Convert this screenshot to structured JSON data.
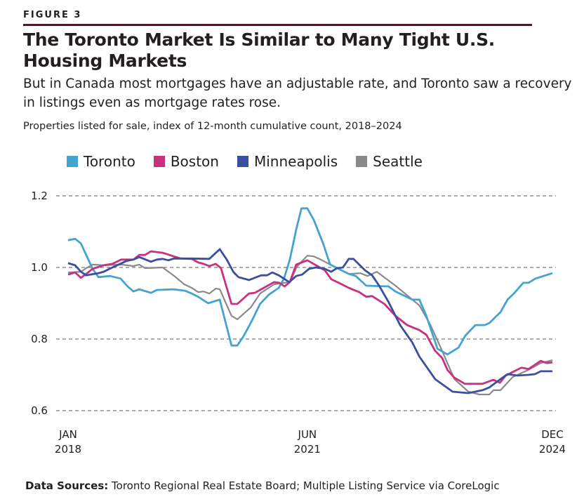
{
  "figure_label": "FIGURE 3",
  "colors": {
    "rule": "#4a1a2c"
  },
  "chart_data": {
    "type": "line",
    "title": "The Toronto Market Is Similar to Many Tight U.S. Housing Markets",
    "subtitle": "But in Canada most mortgages have an adjustable rate, and Toronto saw a recovery in listings even as mortgage rates rose.",
    "ylabel": "Properties listed for sale, index of 12-month cumulative count, 2018–2024",
    "xlabel": "",
    "x_unit": "months since Jan 2018",
    "xlim": [
      0,
      83
    ],
    "ylim": [
      0.6,
      1.2
    ],
    "grid": true,
    "legend_position": "top",
    "y_ticks": [
      {
        "value": 1.2,
        "label": "1.2"
      },
      {
        "value": 1.0,
        "label": "1.0"
      },
      {
        "value": 0.8,
        "label": "0.8"
      },
      {
        "value": 0.6,
        "label": "0.6"
      }
    ],
    "x_ticks": [
      {
        "value": 0,
        "month": "JAN",
        "year": "2018",
        "anchor": "middle"
      },
      {
        "value": 41,
        "month": "JUN",
        "year": "2021",
        "anchor": "middle"
      },
      {
        "value": 83,
        "month": "DEC",
        "year": "2024",
        "anchor": "middle"
      }
    ],
    "series": [
      {
        "name": "Toronto",
        "color": "#45a3d0",
        "points": [
          [
            0,
            1.076
          ],
          [
            1.2,
            1.08
          ],
          [
            2.2,
            1.067
          ],
          [
            3.1,
            1.035
          ],
          [
            4.2,
            0.996
          ],
          [
            5.2,
            0.973
          ],
          [
            7.2,
            0.976
          ],
          [
            9,
            0.969
          ],
          [
            10.2,
            0.947
          ],
          [
            11.2,
            0.933
          ],
          [
            12.2,
            0.939
          ],
          [
            14.2,
            0.929
          ],
          [
            15.2,
            0.937
          ],
          [
            18,
            0.939
          ],
          [
            20,
            0.935
          ],
          [
            21.2,
            0.927
          ],
          [
            22.3,
            0.918
          ],
          [
            24,
            0.9
          ],
          [
            26,
            0.91
          ],
          [
            28,
            0.782
          ],
          [
            29,
            0.782
          ],
          [
            30,
            0.806
          ],
          [
            31.3,
            0.845
          ],
          [
            32.9,
            0.898
          ],
          [
            34.4,
            0.924
          ],
          [
            36.1,
            0.943
          ],
          [
            37,
            0.969
          ],
          [
            38,
            1.022
          ],
          [
            39.1,
            1.106
          ],
          [
            40,
            1.165
          ],
          [
            41,
            1.165
          ],
          [
            42.1,
            1.133
          ],
          [
            43.7,
            1.067
          ],
          [
            44.9,
            1.008
          ],
          [
            48.1,
            0.982
          ],
          [
            49.3,
            0.976
          ],
          [
            51.1,
            0.949
          ],
          [
            54.9,
            0.947
          ],
          [
            56.1,
            0.933
          ],
          [
            59,
            0.91
          ],
          [
            60.2,
            0.91
          ],
          [
            61.4,
            0.865
          ],
          [
            63.3,
            0.773
          ],
          [
            65,
            0.757
          ],
          [
            66.9,
            0.776
          ],
          [
            68.1,
            0.81
          ],
          [
            69.8,
            0.839
          ],
          [
            71.4,
            0.839
          ],
          [
            72.2,
            0.845
          ],
          [
            74.1,
            0.875
          ],
          [
            75.3,
            0.91
          ],
          [
            76.5,
            0.929
          ],
          [
            78,
            0.957
          ],
          [
            78.9,
            0.957
          ],
          [
            80.1,
            0.969
          ],
          [
            83,
            0.984
          ]
        ]
      },
      {
        "name": "Boston",
        "color": "#c8317f",
        "points": [
          [
            0,
            0.98
          ],
          [
            1.2,
            0.986
          ],
          [
            2.2,
            0.971
          ],
          [
            3.1,
            0.982
          ],
          [
            4.2,
            0.996
          ],
          [
            6.1,
            1.006
          ],
          [
            7.6,
            1.01
          ],
          [
            9.1,
            1.022
          ],
          [
            11.2,
            1.022
          ],
          [
            12.2,
            1.035
          ],
          [
            13.2,
            1.035
          ],
          [
            14.2,
            1.045
          ],
          [
            16.2,
            1.041
          ],
          [
            18.1,
            1.031
          ],
          [
            19.3,
            1.025
          ],
          [
            21.2,
            1.024
          ],
          [
            22.3,
            1.014
          ],
          [
            23.2,
            1.01
          ],
          [
            24.2,
            1.004
          ],
          [
            25.3,
            1.01
          ],
          [
            26.2,
            0.998
          ],
          [
            28,
            0.898
          ],
          [
            29,
            0.898
          ],
          [
            31,
            0.927
          ],
          [
            32,
            0.929
          ],
          [
            35.3,
            0.959
          ],
          [
            36.2,
            0.957
          ],
          [
            37.1,
            0.947
          ],
          [
            38,
            0.959
          ],
          [
            39.1,
            1.008
          ],
          [
            41,
            1.02
          ],
          [
            44,
            0.992
          ],
          [
            45.1,
            0.967
          ],
          [
            46.9,
            0.953
          ],
          [
            48.1,
            0.943
          ],
          [
            49.9,
            0.931
          ],
          [
            51.1,
            0.918
          ],
          [
            52.1,
            0.92
          ],
          [
            54.2,
            0.898
          ],
          [
            56.1,
            0.865
          ],
          [
            58.1,
            0.839
          ],
          [
            60.2,
            0.825
          ],
          [
            61.4,
            0.812
          ],
          [
            62.9,
            0.767
          ],
          [
            64.1,
            0.747
          ],
          [
            65,
            0.714
          ],
          [
            66.2,
            0.692
          ],
          [
            68,
            0.675
          ],
          [
            71,
            0.675
          ],
          [
            72.9,
            0.686
          ],
          [
            74,
            0.678
          ],
          [
            75,
            0.698
          ],
          [
            77.7,
            0.72
          ],
          [
            78.9,
            0.716
          ],
          [
            81,
            0.739
          ],
          [
            82,
            0.733
          ],
          [
            83,
            0.735
          ]
        ]
      },
      {
        "name": "Minneapolis",
        "color": "#3a4f9e",
        "points": [
          [
            0,
            1.012
          ],
          [
            1.2,
            1.006
          ],
          [
            2.2,
            0.988
          ],
          [
            3.1,
            0.978
          ],
          [
            5.2,
            0.984
          ],
          [
            6.1,
            0.988
          ],
          [
            7.6,
            1.0
          ],
          [
            10,
            1.018
          ],
          [
            11.2,
            1.022
          ],
          [
            12.2,
            1.029
          ],
          [
            14.2,
            1.016
          ],
          [
            15.2,
            1.022
          ],
          [
            16.2,
            1.024
          ],
          [
            17.2,
            1.02
          ],
          [
            18.1,
            1.025
          ],
          [
            21.2,
            1.025
          ],
          [
            24.2,
            1.024
          ],
          [
            26,
            1.051
          ],
          [
            27.2,
            1.022
          ],
          [
            28.3,
            0.988
          ],
          [
            29.2,
            0.973
          ],
          [
            31,
            0.965
          ],
          [
            33.1,
            0.978
          ],
          [
            34.1,
            0.978
          ],
          [
            35,
            0.986
          ],
          [
            36.1,
            0.978
          ],
          [
            37.9,
            0.959
          ],
          [
            39.1,
            0.976
          ],
          [
            40.1,
            0.98
          ],
          [
            41.3,
            0.996
          ],
          [
            42.5,
            1.0
          ],
          [
            44,
            0.996
          ],
          [
            45.1,
            0.988
          ],
          [
            46.1,
            0.998
          ],
          [
            47.1,
            1.0
          ],
          [
            48.1,
            1.024
          ],
          [
            48.9,
            1.024
          ],
          [
            50.9,
            0.992
          ],
          [
            52.1,
            0.978
          ],
          [
            53.3,
            0.949
          ],
          [
            54.9,
            0.904
          ],
          [
            56.9,
            0.839
          ],
          [
            59,
            0.79
          ],
          [
            60.2,
            0.751
          ],
          [
            62.9,
            0.688
          ],
          [
            65.9,
            0.653
          ],
          [
            68.6,
            0.649
          ],
          [
            71,
            0.657
          ],
          [
            72.2,
            0.665
          ],
          [
            74.1,
            0.688
          ],
          [
            75.3,
            0.702
          ],
          [
            77,
            0.698
          ],
          [
            78.9,
            0.7
          ],
          [
            80,
            0.702
          ],
          [
            81,
            0.71
          ],
          [
            83,
            0.71
          ]
        ]
      },
      {
        "name": "Seattle",
        "color": "#8a8a8a",
        "points": [
          [
            0,
            0.986
          ],
          [
            2.2,
            0.988
          ],
          [
            3.1,
            0.998
          ],
          [
            4.2,
            1.008
          ],
          [
            6.1,
            1.006
          ],
          [
            9.1,
            1.008
          ],
          [
            11.2,
            1.004
          ],
          [
            12.2,
            1.008
          ],
          [
            13.2,
            0.998
          ],
          [
            16.2,
            1.0
          ],
          [
            18.2,
            0.976
          ],
          [
            19.9,
            0.953
          ],
          [
            21.2,
            0.943
          ],
          [
            22.3,
            0.931
          ],
          [
            23.2,
            0.933
          ],
          [
            24.2,
            0.927
          ],
          [
            25.3,
            0.941
          ],
          [
            26,
            0.939
          ],
          [
            28,
            0.865
          ],
          [
            29,
            0.855
          ],
          [
            31.3,
            0.888
          ],
          [
            32.9,
            0.927
          ],
          [
            35.3,
            0.953
          ],
          [
            37.1,
            0.957
          ],
          [
            38,
            0.959
          ],
          [
            39.2,
            1.002
          ],
          [
            41,
            1.033
          ],
          [
            42.1,
            1.031
          ],
          [
            43.3,
            1.022
          ],
          [
            44.9,
            1.008
          ],
          [
            48.1,
            0.982
          ],
          [
            50.1,
            0.984
          ],
          [
            51.3,
            0.976
          ],
          [
            52.9,
            0.988
          ],
          [
            56.1,
            0.949
          ],
          [
            60.2,
            0.894
          ],
          [
            62.1,
            0.839
          ],
          [
            64.1,
            0.767
          ],
          [
            66.2,
            0.688
          ],
          [
            68.6,
            0.653
          ],
          [
            70.5,
            0.645
          ],
          [
            72.2,
            0.645
          ],
          [
            72.9,
            0.657
          ],
          [
            74.1,
            0.657
          ],
          [
            76.2,
            0.694
          ],
          [
            78.9,
            0.714
          ],
          [
            81,
            0.733
          ],
          [
            83,
            0.741
          ]
        ]
      }
    ]
  },
  "source": {
    "label": "Data Sources:",
    "text": " Toronto Regional Real Estate Board; Multiple Listing Service via CoreLogic"
  }
}
